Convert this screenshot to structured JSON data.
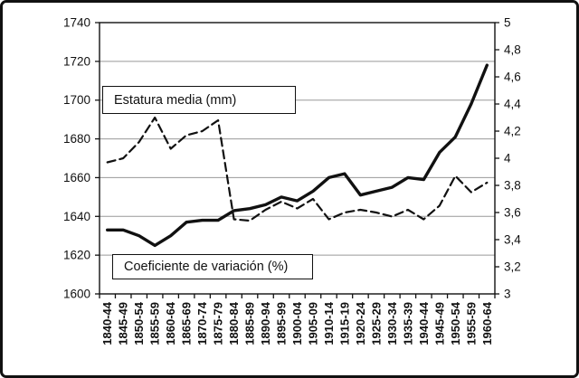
{
  "labels": {
    "estatura_box": "Estatura media (mm)",
    "coeficiente_box": "Coeficiente de variación (%)"
  },
  "colors": {
    "line": "#111111",
    "grid": "#999999",
    "axis": "#111111",
    "text": "#111111",
    "background": "#ffffff"
  },
  "chart_data": {
    "type": "line",
    "categories": [
      "1840-44",
      "1845-49",
      "1850-54",
      "1855-59",
      "1860-64",
      "1865-69",
      "1870-74",
      "1875-79",
      "1880-84",
      "1885-89",
      "1890-94",
      "1895-99",
      "1900-04",
      "1905-09",
      "1910-14",
      "1915-19",
      "1920-24",
      "1925-29",
      "1930-34",
      "1935-39",
      "1940-44",
      "1945-49",
      "1950-54",
      "1955-59",
      "1960-64"
    ],
    "series": [
      {
        "name": "Estatura media (mm)",
        "axis": "left",
        "style": "solid",
        "values": [
          1633,
          1633,
          1630,
          1625,
          1630,
          1637,
          1638,
          1638,
          1643,
          1644,
          1646,
          1650,
          1648,
          1653,
          1660,
          1662,
          1651,
          1653,
          1655,
          1660,
          1659,
          1673,
          1681,
          1698,
          1718
        ]
      },
      {
        "name": "Coeficiente de variación (%)",
        "axis": "right",
        "style": "dashed",
        "values": [
          3.97,
          4.0,
          4.12,
          4.3,
          4.07,
          4.17,
          4.2,
          4.28,
          3.55,
          3.54,
          3.62,
          3.68,
          3.63,
          3.7,
          3.55,
          3.6,
          3.62,
          3.6,
          3.57,
          3.62,
          3.55,
          3.65,
          3.87,
          3.75,
          3.82
        ]
      }
    ],
    "left_axis": {
      "min": 1600,
      "max": 1740,
      "tick_values": [
        1600,
        1620,
        1640,
        1660,
        1680,
        1700,
        1720,
        1740
      ],
      "tick_labels": [
        "1600",
        "1620",
        "1640",
        "1660",
        "1680",
        "1700",
        "1720",
        "1740"
      ]
    },
    "right_axis": {
      "min": 3,
      "max": 5,
      "tick_values": [
        3,
        3.2,
        3.4,
        3.6,
        3.8,
        4,
        4.2,
        4.4,
        4.6,
        4.8,
        5
      ],
      "tick_labels": [
        "3",
        "3,2",
        "3,4",
        "3,6",
        "3,8",
        "4",
        "4,2",
        "4,4",
        "4,6",
        "4,8",
        "5"
      ]
    },
    "grid": true,
    "legend_position": "none",
    "title": "",
    "xlabel": "",
    "ylabel_left": "Estatura media (mm)",
    "ylabel_right": "Coeficiente de variación (%)"
  }
}
